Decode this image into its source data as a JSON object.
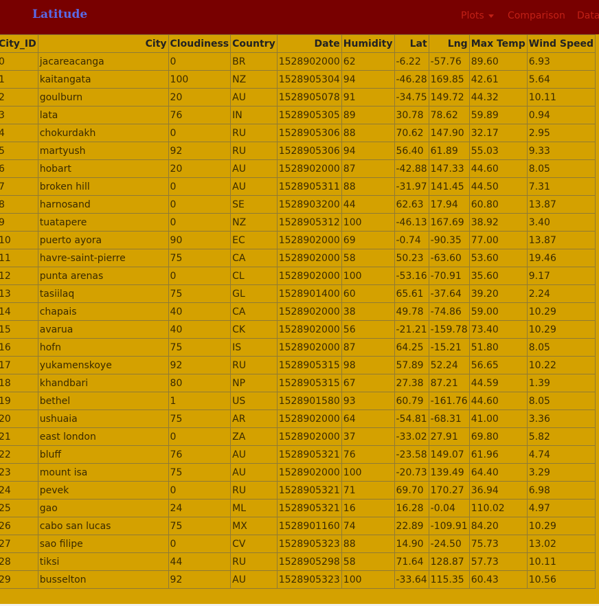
{
  "navbar": {
    "brand": "Latitude",
    "items": [
      "Plots",
      "Comparison",
      "Data"
    ]
  },
  "colors": {
    "navbar": "#780000",
    "background": "#d4a100",
    "brand": "#5a6ae6",
    "nav_text": "#c12016"
  },
  "table": {
    "headers": [
      "City_ID",
      "City",
      "Cloudiness",
      "Country",
      "Date",
      "Humidity",
      "Lat",
      "Lng",
      "Max Temp",
      "Wind Speed"
    ],
    "rows": [
      [
        "0",
        "jacareacanga",
        "0",
        "BR",
        "1528902000",
        "62",
        "-6.22",
        "-57.76",
        "89.60",
        "6.93"
      ],
      [
        "1",
        "kaitangata",
        "100",
        "NZ",
        "1528905304",
        "94",
        "-46.28",
        "169.85",
        "42.61",
        "5.64"
      ],
      [
        "2",
        "goulburn",
        "20",
        "AU",
        "1528905078",
        "91",
        "-34.75",
        "149.72",
        "44.32",
        "10.11"
      ],
      [
        "3",
        "lata",
        "76",
        "IN",
        "1528905305",
        "89",
        "30.78",
        "78.62",
        "59.89",
        "0.94"
      ],
      [
        "4",
        "chokurdakh",
        "0",
        "RU",
        "1528905306",
        "88",
        "70.62",
        "147.90",
        "32.17",
        "2.95"
      ],
      [
        "5",
        "martyush",
        "92",
        "RU",
        "1528905306",
        "94",
        "56.40",
        "61.89",
        "55.03",
        "9.33"
      ],
      [
        "6",
        "hobart",
        "20",
        "AU",
        "1528902000",
        "87",
        "-42.88",
        "147.33",
        "44.60",
        "8.05"
      ],
      [
        "7",
        "broken hill",
        "0",
        "AU",
        "1528905311",
        "88",
        "-31.97",
        "141.45",
        "44.50",
        "7.31"
      ],
      [
        "8",
        "harnosand",
        "0",
        "SE",
        "1528903200",
        "44",
        "62.63",
        "17.94",
        "60.80",
        "13.87"
      ],
      [
        "9",
        "tuatapere",
        "0",
        "NZ",
        "1528905312",
        "100",
        "-46.13",
        "167.69",
        "38.92",
        "3.40"
      ],
      [
        "10",
        "puerto ayora",
        "90",
        "EC",
        "1528902000",
        "69",
        "-0.74",
        "-90.35",
        "77.00",
        "13.87"
      ],
      [
        "11",
        "havre-saint-pierre",
        "75",
        "CA",
        "1528902000",
        "58",
        "50.23",
        "-63.60",
        "53.60",
        "19.46"
      ],
      [
        "12",
        "punta arenas",
        "0",
        "CL",
        "1528902000",
        "100",
        "-53.16",
        "-70.91",
        "35.60",
        "9.17"
      ],
      [
        "13",
        "tasiilaq",
        "75",
        "GL",
        "1528901400",
        "60",
        "65.61",
        "-37.64",
        "39.20",
        "2.24"
      ],
      [
        "14",
        "chapais",
        "40",
        "CA",
        "1528902000",
        "38",
        "49.78",
        "-74.86",
        "59.00",
        "10.29"
      ],
      [
        "15",
        "avarua",
        "40",
        "CK",
        "1528902000",
        "56",
        "-21.21",
        "-159.78",
        "73.40",
        "10.29"
      ],
      [
        "16",
        "hofn",
        "75",
        "IS",
        "1528902000",
        "87",
        "64.25",
        "-15.21",
        "51.80",
        "8.05"
      ],
      [
        "17",
        "yukamenskoye",
        "92",
        "RU",
        "1528905315",
        "98",
        "57.89",
        "52.24",
        "56.65",
        "10.22"
      ],
      [
        "18",
        "khandbari",
        "80",
        "NP",
        "1528905315",
        "67",
        "27.38",
        "87.21",
        "44.59",
        "1.39"
      ],
      [
        "19",
        "bethel",
        "1",
        "US",
        "1528901580",
        "93",
        "60.79",
        "-161.76",
        "44.60",
        "8.05"
      ],
      [
        "20",
        "ushuaia",
        "75",
        "AR",
        "1528902000",
        "64",
        "-54.81",
        "-68.31",
        "41.00",
        "3.36"
      ],
      [
        "21",
        "east london",
        "0",
        "ZA",
        "1528902000",
        "37",
        "-33.02",
        "27.91",
        "69.80",
        "5.82"
      ],
      [
        "22",
        "bluff",
        "76",
        "AU",
        "1528905321",
        "76",
        "-23.58",
        "149.07",
        "61.96",
        "4.74"
      ],
      [
        "23",
        "mount isa",
        "75",
        "AU",
        "1528902000",
        "100",
        "-20.73",
        "139.49",
        "64.40",
        "3.29"
      ],
      [
        "24",
        "pevek",
        "0",
        "RU",
        "1528905321",
        "71",
        "69.70",
        "170.27",
        "36.94",
        "6.98"
      ],
      [
        "25",
        "gao",
        "24",
        "ML",
        "1528905321",
        "16",
        "16.28",
        "-0.04",
        "110.02",
        "4.97"
      ],
      [
        "26",
        "cabo san lucas",
        "75",
        "MX",
        "1528901160",
        "74",
        "22.89",
        "-109.91",
        "84.20",
        "10.29"
      ],
      [
        "27",
        "sao filipe",
        "0",
        "CV",
        "1528905323",
        "88",
        "14.90",
        "-24.50",
        "75.73",
        "13.02"
      ],
      [
        "28",
        "tiksi",
        "44",
        "RU",
        "1528905298",
        "58",
        "71.64",
        "128.87",
        "57.73",
        "10.11"
      ],
      [
        "29",
        "busselton",
        "92",
        "AU",
        "1528905323",
        "100",
        "-33.64",
        "115.35",
        "60.43",
        "10.56"
      ]
    ]
  }
}
